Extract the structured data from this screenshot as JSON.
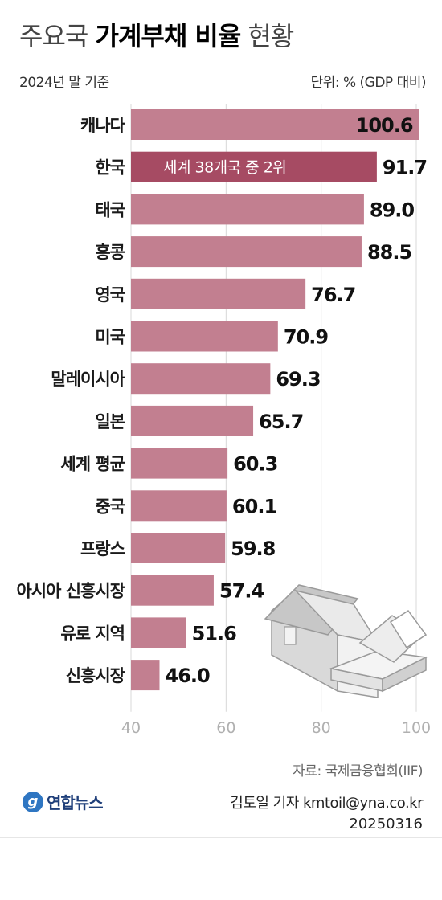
{
  "header": {
    "title_part1": "주요국",
    "title_bold": "가계부채 비율",
    "title_part2": "현황",
    "subtitle": "2024년 말 기준",
    "unit": "단위: % (GDP 대비)"
  },
  "chart_data": {
    "type": "bar",
    "orientation": "horizontal",
    "categories": [
      "캐나다",
      "한국",
      "태국",
      "홍콩",
      "영국",
      "미국",
      "말레이시아",
      "일본",
      "세계 평균",
      "중국",
      "프랑스",
      "아시아 신흥시장",
      "유로 지역",
      "신흥시장"
    ],
    "values": [
      100.6,
      91.7,
      89.0,
      88.5,
      76.7,
      70.9,
      69.3,
      65.7,
      60.3,
      60.1,
      59.8,
      57.4,
      51.6,
      46.0
    ],
    "value_labels": [
      "100.6",
      "91.7",
      "89.0",
      "88.5",
      "76.7",
      "70.9",
      "69.3",
      "65.7",
      "60.3",
      "60.1",
      "59.8",
      "57.4",
      "51.6",
      "46.0"
    ],
    "highlight_index": 1,
    "annotation": "세계 38개국 중 2위",
    "xlim": [
      40,
      100
    ],
    "xticks": [
      "40",
      "60",
      "80",
      "100"
    ],
    "grid": true,
    "bar_color": "#c27f90",
    "highlight_color": "#a64b63"
  },
  "footer": {
    "source": "자료: 국제금융협회(IIF)",
    "logo_text": "연합뉴스",
    "credit": "김토일 기자 kmtoil@yna.co.kr",
    "date": "20250316"
  }
}
